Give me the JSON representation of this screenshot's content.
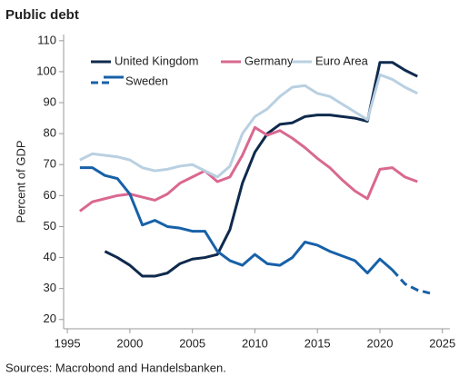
{
  "chart_data": {
    "type": "line",
    "title": "Public debt",
    "y_label": "Percent of GDP",
    "source": "Sources: Macrobond and Handelsbanken.",
    "x": [
      1996,
      1997,
      1998,
      1999,
      2000,
      2001,
      2002,
      2003,
      2004,
      2005,
      2006,
      2007,
      2008,
      2009,
      2010,
      2011,
      2012,
      2013,
      2014,
      2015,
      2016,
      2017,
      2018,
      2019,
      2020,
      2021,
      2022,
      2023,
      2024
    ],
    "series": [
      {
        "name": "United Kingdom",
        "color": "#0f2a4d",
        "values": [
          null,
          null,
          42,
          40,
          37.5,
          34,
          34,
          35,
          38,
          39.5,
          40,
          41,
          49,
          64,
          74,
          80,
          83,
          83.5,
          85.5,
          86,
          86,
          85.5,
          85,
          84,
          103,
          103,
          100.5,
          98.5,
          null
        ]
      },
      {
        "name": "Germany",
        "color": "#d96890",
        "values": [
          55,
          58,
          59,
          60,
          60.5,
          59.5,
          58.5,
          60.5,
          64,
          66,
          68,
          64.5,
          66,
          73,
          82,
          79.5,
          81,
          78.5,
          75.5,
          72,
          69,
          65,
          61.5,
          59,
          68.5,
          69,
          66,
          64.5,
          null
        ]
      },
      {
        "name": "Euro Area",
        "color": "#b9d0e1",
        "values": [
          71.5,
          73.5,
          73,
          72.5,
          71.5,
          69,
          68,
          68.5,
          69.5,
          70,
          68,
          66,
          69.5,
          80,
          85.5,
          88,
          92,
          95,
          95.5,
          93,
          92,
          89.5,
          87,
          84.5,
          99,
          97.5,
          95,
          93,
          null
        ]
      },
      {
        "name": "Sweden",
        "color": "#1761a8",
        "dashed_from": 2021,
        "values": [
          69,
          69,
          66.5,
          65.5,
          60.5,
          50.5,
          52,
          50,
          49.5,
          48.5,
          48.5,
          42,
          39,
          37.5,
          41,
          38,
          37.5,
          40,
          45,
          44,
          42,
          40.5,
          39,
          35,
          39.5,
          36,
          31.5,
          29.5,
          28.5
        ]
      }
    ],
    "xlim": [
      1994.7,
      2025.6
    ],
    "xticks": [
      1995,
      2000,
      2005,
      2010,
      2015,
      2020,
      2025
    ],
    "ylim": [
      17,
      112
    ],
    "yticks": [
      20,
      30,
      40,
      50,
      60,
      70,
      80,
      90,
      100,
      110
    ],
    "grid": false,
    "legend": "top-left"
  }
}
